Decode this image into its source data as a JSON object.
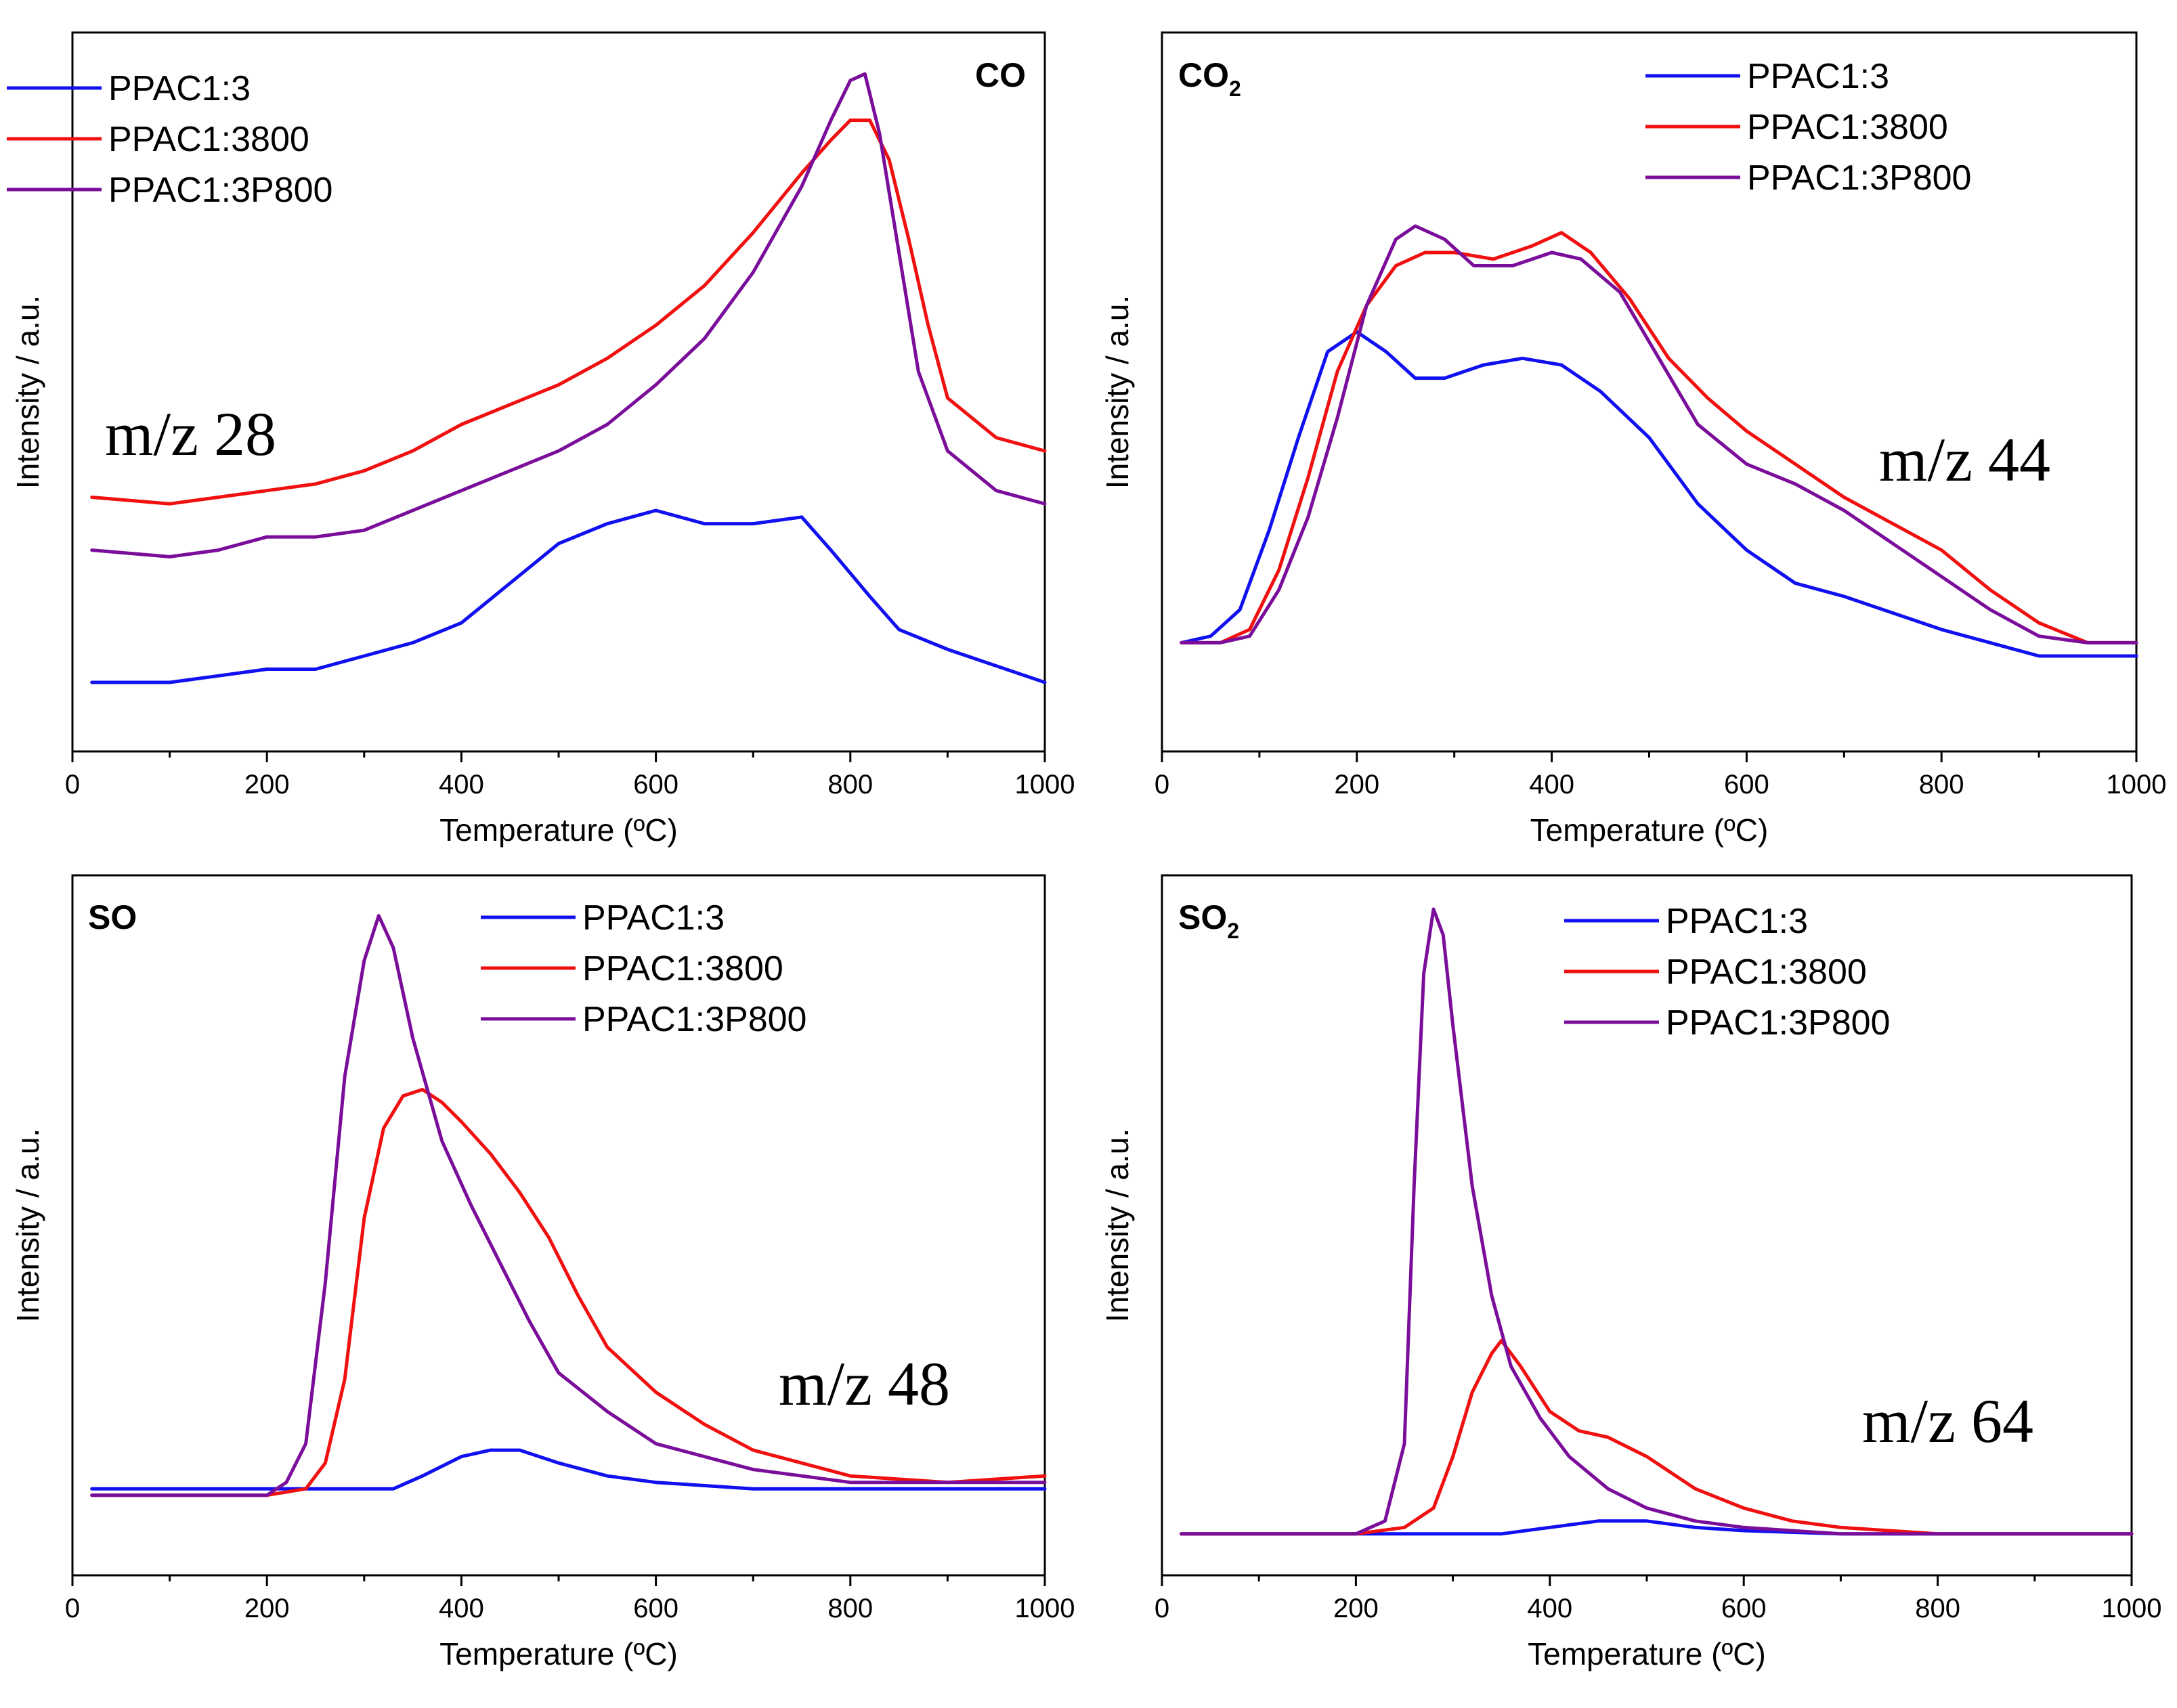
{
  "colors": {
    "PPAC1:3": "#1010f0",
    "PPAC1:3800": "#f01010",
    "PPAC1:3P800": "#7a0e9a"
  },
  "chart_data": [
    {
      "type": "line",
      "tag": "CO",
      "tag_sub": "",
      "mz": "m/z 28",
      "xlabel": "Temperature (ºC)",
      "ylabel": "Intensity / a.u.",
      "xlim": [
        0,
        1000
      ],
      "ylim": [
        0,
        1
      ],
      "xticks": [
        0,
        200,
        400,
        600,
        800,
        1000
      ],
      "legend": "top-left",
      "series": [
        {
          "name": "PPAC1:3",
          "x": [
            20,
            100,
            150,
            200,
            250,
            300,
            350,
            400,
            450,
            500,
            550,
            600,
            650,
            700,
            750,
            780,
            820,
            850,
            900,
            1000
          ],
          "y": [
            0.05,
            0.05,
            0.06,
            0.07,
            0.07,
            0.09,
            0.11,
            0.14,
            0.2,
            0.26,
            0.29,
            0.31,
            0.29,
            0.29,
            0.3,
            0.25,
            0.18,
            0.13,
            0.1,
            0.05
          ]
        },
        {
          "name": "PPAC1:3800",
          "x": [
            20,
            100,
            150,
            200,
            250,
            300,
            350,
            400,
            450,
            500,
            550,
            600,
            650,
            700,
            750,
            780,
            800,
            820,
            840,
            860,
            880,
            900,
            950,
            1000
          ],
          "y": [
            0.33,
            0.32,
            0.33,
            0.34,
            0.35,
            0.37,
            0.4,
            0.44,
            0.47,
            0.5,
            0.54,
            0.59,
            0.65,
            0.73,
            0.82,
            0.87,
            0.9,
            0.9,
            0.84,
            0.72,
            0.59,
            0.48,
            0.42,
            0.4
          ]
        },
        {
          "name": "PPAC1:3P800",
          "x": [
            20,
            100,
            150,
            200,
            250,
            300,
            350,
            400,
            450,
            500,
            550,
            600,
            650,
            700,
            750,
            780,
            800,
            815,
            830,
            850,
            870,
            900,
            950,
            1000
          ],
          "y": [
            0.25,
            0.24,
            0.25,
            0.27,
            0.27,
            0.28,
            0.31,
            0.34,
            0.37,
            0.4,
            0.44,
            0.5,
            0.57,
            0.67,
            0.8,
            0.9,
            0.96,
            0.97,
            0.88,
            0.7,
            0.52,
            0.4,
            0.34,
            0.32
          ]
        }
      ]
    },
    {
      "type": "line",
      "tag": "CO",
      "tag_sub": "2",
      "mz": "m/z 44",
      "xlabel": "Temperature (ºC)",
      "ylabel": "Intensity / a.u.",
      "xlim": [
        0,
        1000
      ],
      "ylim": [
        0,
        1
      ],
      "xticks": [
        0,
        200,
        400,
        600,
        800,
        1000
      ],
      "legend": "top-right",
      "series": [
        {
          "name": "PPAC1:3",
          "x": [
            20,
            50,
            80,
            110,
            140,
            170,
            200,
            230,
            260,
            290,
            330,
            370,
            410,
            450,
            500,
            550,
            600,
            650,
            700,
            800,
            900,
            1000
          ],
          "y": [
            0.11,
            0.12,
            0.16,
            0.28,
            0.42,
            0.55,
            0.58,
            0.55,
            0.51,
            0.51,
            0.53,
            0.54,
            0.53,
            0.49,
            0.42,
            0.32,
            0.25,
            0.2,
            0.18,
            0.13,
            0.09,
            0.09
          ]
        },
        {
          "name": "PPAC1:3800",
          "x": [
            20,
            60,
            90,
            120,
            150,
            180,
            210,
            240,
            270,
            300,
            340,
            380,
            410,
            440,
            480,
            520,
            560,
            600,
            650,
            700,
            750,
            800,
            850,
            900,
            950,
            1000
          ],
          "y": [
            0.11,
            0.11,
            0.13,
            0.22,
            0.36,
            0.52,
            0.62,
            0.68,
            0.7,
            0.7,
            0.69,
            0.71,
            0.73,
            0.7,
            0.63,
            0.54,
            0.48,
            0.43,
            0.38,
            0.33,
            0.29,
            0.25,
            0.19,
            0.14,
            0.11,
            0.11
          ]
        },
        {
          "name": "PPAC1:3P800",
          "x": [
            20,
            60,
            90,
            120,
            150,
            180,
            210,
            240,
            260,
            290,
            320,
            360,
            400,
            430,
            470,
            510,
            550,
            600,
            650,
            700,
            750,
            800,
            850,
            900,
            950,
            1000
          ],
          "y": [
            0.11,
            0.11,
            0.12,
            0.19,
            0.3,
            0.45,
            0.62,
            0.72,
            0.74,
            0.72,
            0.68,
            0.68,
            0.7,
            0.69,
            0.64,
            0.54,
            0.44,
            0.38,
            0.35,
            0.31,
            0.26,
            0.21,
            0.16,
            0.12,
            0.11,
            0.11
          ]
        }
      ]
    },
    {
      "type": "line",
      "tag": "SO",
      "tag_sub": "",
      "mz": "m/z 48",
      "xlabel": "Temperature (ºC)",
      "ylabel": "Intensity / a.u.",
      "xlim": [
        0,
        1000
      ],
      "ylim": [
        0,
        1
      ],
      "xticks": [
        0,
        200,
        400,
        600,
        800,
        1000
      ],
      "legend": "top-right",
      "series": [
        {
          "name": "PPAC1:3",
          "x": [
            20,
            200,
            330,
            360,
            400,
            430,
            460,
            500,
            550,
            600,
            700,
            800,
            1000
          ],
          "y": [
            0.08,
            0.08,
            0.08,
            0.1,
            0.13,
            0.14,
            0.14,
            0.12,
            0.1,
            0.09,
            0.08,
            0.08,
            0.08
          ]
        },
        {
          "name": "PPAC1:3800",
          "x": [
            20,
            200,
            240,
            260,
            280,
            300,
            320,
            340,
            360,
            380,
            400,
            430,
            460,
            490,
            520,
            550,
            600,
            650,
            700,
            800,
            900,
            1000
          ],
          "y": [
            0.07,
            0.07,
            0.08,
            0.12,
            0.25,
            0.5,
            0.64,
            0.69,
            0.7,
            0.68,
            0.65,
            0.6,
            0.54,
            0.47,
            0.38,
            0.3,
            0.23,
            0.18,
            0.14,
            0.1,
            0.09,
            0.1
          ]
        },
        {
          "name": "PPAC1:3P800",
          "x": [
            20,
            200,
            220,
            240,
            260,
            280,
            300,
            315,
            330,
            350,
            380,
            410,
            440,
            470,
            500,
            550,
            600,
            700,
            800,
            900,
            1000
          ],
          "y": [
            0.07,
            0.07,
            0.09,
            0.15,
            0.4,
            0.72,
            0.9,
            0.97,
            0.92,
            0.78,
            0.62,
            0.52,
            0.43,
            0.34,
            0.26,
            0.2,
            0.15,
            0.11,
            0.09,
            0.09,
            0.09
          ]
        }
      ]
    },
    {
      "type": "line",
      "tag": "SO",
      "tag_sub": "2",
      "mz": "m/z 64",
      "xlabel": "Temperature (ºC)",
      "ylabel": "Intensity / a.u.",
      "xlim": [
        0,
        1000
      ],
      "ylim": [
        0,
        1
      ],
      "xticks": [
        0,
        200,
        400,
        600,
        800,
        1000
      ],
      "legend": "top-right",
      "series": [
        {
          "name": "PPAC1:3",
          "x": [
            20,
            350,
            400,
            450,
            500,
            550,
            600,
            700,
            1000
          ],
          "y": [
            0.01,
            0.01,
            0.02,
            0.03,
            0.03,
            0.02,
            0.015,
            0.01,
            0.01
          ]
        },
        {
          "name": "PPAC1:3800",
          "x": [
            20,
            200,
            250,
            280,
            300,
            320,
            340,
            350,
            370,
            400,
            430,
            460,
            500,
            550,
            600,
            650,
            700,
            800,
            1000
          ],
          "y": [
            0.01,
            0.01,
            0.02,
            0.05,
            0.13,
            0.23,
            0.29,
            0.31,
            0.27,
            0.2,
            0.17,
            0.16,
            0.13,
            0.08,
            0.05,
            0.03,
            0.02,
            0.01,
            0.01
          ]
        },
        {
          "name": "PPAC1:3P800",
          "x": [
            20,
            200,
            230,
            250,
            260,
            270,
            280,
            290,
            300,
            320,
            340,
            360,
            390,
            420,
            460,
            500,
            550,
            600,
            700,
            1000
          ],
          "y": [
            0.01,
            0.01,
            0.03,
            0.15,
            0.55,
            0.88,
            0.98,
            0.94,
            0.8,
            0.55,
            0.38,
            0.27,
            0.19,
            0.13,
            0.08,
            0.05,
            0.03,
            0.02,
            0.01,
            0.01
          ]
        }
      ]
    }
  ]
}
